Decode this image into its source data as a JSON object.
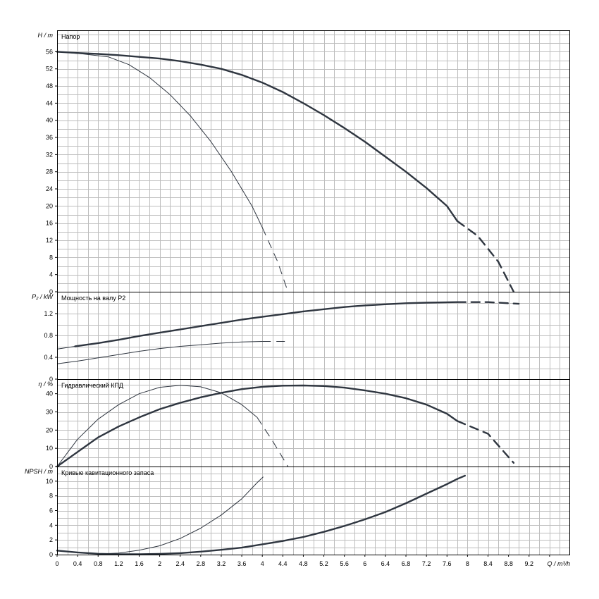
{
  "chart_data": {
    "type": "line",
    "x_axis": {
      "label": "Q / m³/h",
      "min": 0,
      "max": 10.0,
      "major_step": 0.4,
      "minor_step": 0.2,
      "tick_labels": [
        "0",
        "0.4",
        "0.8",
        "1.2",
        "1.6",
        "2",
        "2.4",
        "2.8",
        "3.2",
        "3.6",
        "4",
        "4.4",
        "4.8",
        "5.2",
        "5.6",
        "6",
        "6.4",
        "6.8",
        "7.2",
        "7.6",
        "8",
        "8.4",
        "8.8",
        "9.2",
        "Q / m³/h"
      ]
    },
    "panels": [
      {
        "id": "head",
        "title": "Напор",
        "ylabel": "H / m",
        "ylim": [
          0,
          61
        ],
        "tick_values": [
          0,
          4,
          8,
          12,
          16,
          20,
          24,
          28,
          32,
          36,
          40,
          44,
          48,
          52,
          56
        ],
        "grid_step": 2,
        "series": [
          {
            "style": "thick",
            "solid": [
              [
                0,
                56
              ],
              [
                0.4,
                55.7
              ],
              [
                0.8,
                55.5
              ],
              [
                1.2,
                55.2
              ],
              [
                1.6,
                54.8
              ],
              [
                2,
                54.4
              ],
              [
                2.4,
                53.8
              ],
              [
                2.8,
                53
              ],
              [
                3.2,
                52
              ],
              [
                3.6,
                50.6
              ],
              [
                4,
                48.8
              ],
              [
                4.4,
                46.6
              ],
              [
                4.8,
                44
              ],
              [
                5.2,
                41.2
              ],
              [
                5.6,
                38.2
              ],
              [
                6,
                35
              ],
              [
                6.4,
                31.5
              ],
              [
                6.8,
                28
              ],
              [
                7.2,
                24.2
              ],
              [
                7.6,
                20
              ],
              [
                7.8,
                16.5
              ]
            ],
            "dashed": [
              [
                7.8,
                16.5
              ],
              [
                8.2,
                13
              ],
              [
                8.6,
                7
              ],
              [
                8.9,
                0
              ]
            ]
          },
          {
            "style": "thin",
            "solid": [
              [
                0,
                56
              ],
              [
                0.5,
                55.5
              ],
              [
                1,
                54.8
              ],
              [
                1.4,
                53
              ],
              [
                1.8,
                50
              ],
              [
                2.2,
                46
              ],
              [
                2.6,
                41
              ],
              [
                3,
                35
              ],
              [
                3.4,
                28
              ],
              [
                3.8,
                20
              ],
              [
                4,
                15
              ]
            ],
            "dashed": [
              [
                4,
                15
              ],
              [
                4.3,
                7
              ],
              [
                4.5,
                0
              ]
            ]
          }
        ]
      },
      {
        "id": "power",
        "title": "Мощность на валу P2",
        "ylabel": "P₂ / kW",
        "ylim": [
          0,
          1.6
        ],
        "tick_values": [
          0,
          0.4,
          0.8,
          1.2
        ],
        "grid_step": 0.2,
        "series": [
          {
            "style": "thick",
            "solid": [
              [
                0.35,
                0.6
              ],
              [
                0.8,
                0.66
              ],
              [
                1.2,
                0.72
              ],
              [
                1.6,
                0.79
              ],
              [
                2,
                0.85
              ],
              [
                2.4,
                0.91
              ],
              [
                2.8,
                0.97
              ],
              [
                3.2,
                1.03
              ],
              [
                3.6,
                1.09
              ],
              [
                4,
                1.14
              ],
              [
                4.4,
                1.19
              ],
              [
                4.8,
                1.24
              ],
              [
                5.2,
                1.28
              ],
              [
                5.6,
                1.32
              ],
              [
                6,
                1.35
              ],
              [
                6.4,
                1.37
              ],
              [
                6.8,
                1.39
              ],
              [
                7.2,
                1.4
              ],
              [
                7.8,
                1.41
              ]
            ],
            "dashed": [
              [
                7.8,
                1.41
              ],
              [
                8.4,
                1.41
              ],
              [
                9,
                1.38
              ]
            ]
          },
          {
            "style": "thin",
            "solid": [
              [
                0,
                0.28
              ],
              [
                0.4,
                0.33
              ],
              [
                0.8,
                0.39
              ],
              [
                1.2,
                0.45
              ],
              [
                1.6,
                0.51
              ],
              [
                2,
                0.56
              ],
              [
                2.4,
                0.6
              ],
              [
                2.8,
                0.63
              ],
              [
                3.2,
                0.66
              ],
              [
                3.6,
                0.68
              ],
              [
                4,
                0.69
              ]
            ],
            "dashed": [
              [
                4,
                0.69
              ],
              [
                4.5,
                0.69
              ]
            ]
          },
          {
            "style": "thin",
            "solid": [
              [
                0,
                0.55
              ],
              [
                0.35,
                0.6
              ]
            ],
            "dashed": []
          }
        ]
      },
      {
        "id": "efficiency",
        "title": "Гидравлический КПД",
        "ylabel": "η / %",
        "ylim": [
          0,
          48
        ],
        "tick_values": [
          0,
          10,
          20,
          30,
          40
        ],
        "grid_step": 5,
        "series": [
          {
            "style": "thick",
            "solid": [
              [
                0,
                0
              ],
              [
                0.4,
                8
              ],
              [
                0.8,
                16
              ],
              [
                1.2,
                22
              ],
              [
                1.6,
                27
              ],
              [
                2,
                31.5
              ],
              [
                2.4,
                35
              ],
              [
                2.8,
                38
              ],
              [
                3.2,
                40.5
              ],
              [
                3.6,
                42.5
              ],
              [
                4,
                43.8
              ],
              [
                4.4,
                44.4
              ],
              [
                4.8,
                44.5
              ],
              [
                5.2,
                44.2
              ],
              [
                5.6,
                43.3
              ],
              [
                6,
                41.8
              ],
              [
                6.4,
                40
              ],
              [
                6.8,
                37.5
              ],
              [
                7.2,
                34
              ],
              [
                7.6,
                29
              ],
              [
                7.8,
                25
              ]
            ],
            "dashed": [
              [
                7.8,
                25
              ],
              [
                8.4,
                18
              ],
              [
                8.9,
                2
              ]
            ]
          },
          {
            "style": "thin",
            "solid": [
              [
                0,
                0
              ],
              [
                0.4,
                15
              ],
              [
                0.8,
                26
              ],
              [
                1.2,
                34
              ],
              [
                1.6,
                40
              ],
              [
                2,
                43.5
              ],
              [
                2.4,
                44.6
              ],
              [
                2.8,
                43.8
              ],
              [
                3.2,
                40.5
              ],
              [
                3.6,
                34
              ],
              [
                3.9,
                27
              ]
            ],
            "dashed": [
              [
                3.9,
                27
              ],
              [
                4.2,
                14
              ],
              [
                4.5,
                0
              ]
            ]
          }
        ]
      },
      {
        "id": "npsh",
        "title": "Кривые кавитационного запаса",
        "ylabel": "NPSH / m",
        "ylim": [
          0,
          12
        ],
        "tick_values": [
          0,
          2,
          4,
          6,
          8,
          10
        ],
        "grid_step": 1,
        "series": [
          {
            "style": "thick",
            "solid": [
              [
                0,
                0.55
              ],
              [
                0.4,
                0.3
              ],
              [
                0.8,
                0.12
              ],
              [
                1.2,
                0.05
              ],
              [
                1.6,
                0.05
              ],
              [
                2,
                0.1
              ],
              [
                2.4,
                0.2
              ],
              [
                2.8,
                0.4
              ],
              [
                3.2,
                0.65
              ],
              [
                3.6,
                0.95
              ],
              [
                4,
                1.4
              ],
              [
                4.4,
                1.85
              ],
              [
                4.8,
                2.4
              ],
              [
                5.2,
                3.1
              ],
              [
                5.6,
                3.9
              ],
              [
                6,
                4.8
              ],
              [
                6.4,
                5.8
              ],
              [
                6.8,
                7
              ],
              [
                7.2,
                8.3
              ],
              [
                7.6,
                9.6
              ],
              [
                7.8,
                10.3
              ]
            ],
            "dashed": [
              [
                7.8,
                10.3
              ],
              [
                8,
                10.9
              ]
            ]
          },
          {
            "style": "thin",
            "solid": [
              [
                0,
                0.5
              ],
              [
                0.4,
                0.3
              ],
              [
                0.8,
                0.1
              ],
              [
                1.2,
                0.2
              ],
              [
                1.6,
                0.6
              ],
              [
                2,
                1.2
              ],
              [
                2.4,
                2.2
              ],
              [
                2.8,
                3.6
              ],
              [
                3.2,
                5.4
              ],
              [
                3.6,
                7.6
              ],
              [
                3.9,
                9.8
              ]
            ],
            "dashed": [
              [
                3.9,
                9.8
              ],
              [
                4.05,
                10.8
              ]
            ]
          }
        ]
      }
    ]
  }
}
